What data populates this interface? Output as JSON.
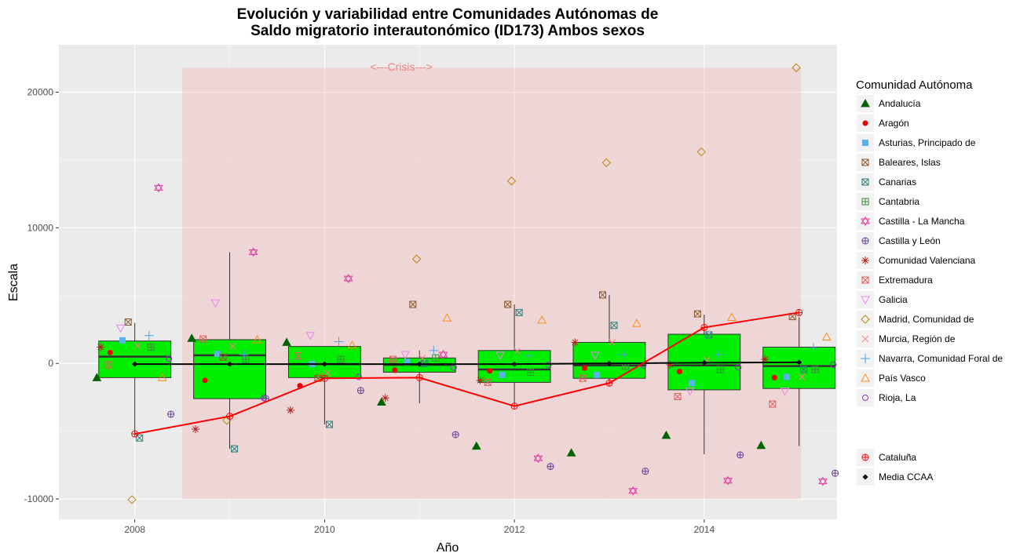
{
  "chart_data": {
    "type": "boxplot",
    "title_line1": "Evolución y variabilidad entre Comunidades Autónomas de",
    "title_line2": "Saldo migratorio interautonómico (ID173) Ambos sexos",
    "xlabel": "Año",
    "ylabel": "Escala",
    "x_ticks": [
      "2008",
      "2010",
      "2012",
      "2014"
    ],
    "x_tick_values": [
      2008,
      2010,
      2012,
      2014
    ],
    "y_ticks": [
      "-10000",
      "0",
      "10000",
      "20000"
    ],
    "y_tick_values": [
      -10000,
      0,
      10000,
      20000
    ],
    "xlim": [
      2007.2,
      2015.4
    ],
    "ylim": [
      -11500,
      23500
    ],
    "grid": true,
    "legend_position": "right",
    "legend_title": "Comunidad Autónoma",
    "crisis": {
      "label": "<---Crisis--->",
      "x_start": 2008.5,
      "x_end": 2015.4,
      "y_start": -10000,
      "y_end": 21800,
      "color": "#f4a6a6"
    },
    "box_color": "#00ee00",
    "mean_color": "#000000",
    "cataluna_color": "#ff0000",
    "years": [
      2008,
      2009,
      2010,
      2011,
      2012,
      2013,
      2014,
      2015
    ],
    "boxes": [
      {
        "year": 2008,
        "q1": -1050,
        "median": 500,
        "q3": 1650,
        "wmin": -5200,
        "wmax": 3000
      },
      {
        "year": 2009,
        "q1": -2600,
        "median": 600,
        "q3": 1750,
        "wmin": -6300,
        "wmax": 8200
      },
      {
        "year": 2010,
        "q1": -1050,
        "median": -50,
        "q3": 1250,
        "wmin": -4500,
        "wmax": 1250
      },
      {
        "year": 2011,
        "q1": -650,
        "median": -100,
        "q3": 400,
        "wmin": -2950,
        "wmax": 950
      },
      {
        "year": 2012,
        "q1": -1400,
        "median": -450,
        "q3": 950,
        "wmin": -3200,
        "wmax": 4350
      },
      {
        "year": 2013,
        "q1": -1100,
        "median": -150,
        "q3": 1550,
        "wmin": -1500,
        "wmax": 5050
      },
      {
        "year": 2014,
        "q1": -1950,
        "median": -150,
        "q3": 2150,
        "wmin": -6700,
        "wmax": 3600
      },
      {
        "year": 2015,
        "q1": -1850,
        "median": -200,
        "q3": 1200,
        "wmin": -6100,
        "wmax": 3400
      }
    ],
    "mean_ccaa": [
      -50,
      -50,
      -50,
      -50,
      -50,
      0,
      50,
      80
    ],
    "cataluna": [
      -5200,
      -3900,
      -1100,
      -1050,
      -3150,
      -1450,
      2650,
      3750
    ],
    "series": [
      {
        "name": "Andalucía",
        "symbol": "triangle",
        "color": "#006400",
        "values": [
          -1050,
          1850,
          1550,
          -2850,
          -6100,
          -6600,
          -5300,
          -6050
        ]
      },
      {
        "name": "Aragón",
        "symbol": "dot",
        "color": "#ee0000",
        "values": [
          800,
          -1250,
          -1650,
          -500,
          -550,
          -350,
          -600,
          -1050
        ]
      },
      {
        "name": "Asturias, Principado de",
        "symbol": "square",
        "color": "#56b4e9",
        "values": [
          1700,
          700,
          -50,
          100,
          -850,
          -850,
          -1450,
          -1000
        ]
      },
      {
        "name": "Baleares, Islas",
        "symbol": "square-x",
        "color": "#8b5a2b",
        "values": [
          3050,
          450,
          -1100,
          4350,
          4350,
          5050,
          3650,
          3450
        ]
      },
      {
        "name": "Canarias",
        "symbol": "square-x",
        "color": "#2f7f7f",
        "values": [
          -5500,
          -6300,
          -4500,
          0,
          3750,
          2800,
          2100,
          -450
        ]
      },
      {
        "name": "Cantabria",
        "symbol": "square-plus",
        "color": "#3c8c3c",
        "values": [
          1200,
          300,
          300,
          400,
          -650,
          -200,
          -450,
          -450
        ]
      },
      {
        "name": "Castilla - La Mancha",
        "symbol": "star",
        "color": "#e040a0",
        "values": [
          12950,
          8200,
          6250,
          650,
          -7000,
          -9400,
          -8650,
          -8700
        ]
      },
      {
        "name": "Castilla y León",
        "symbol": "circle-plus",
        "color": "#6a3d9a",
        "values": [
          -3750,
          -2600,
          -2000,
          -5250,
          -7600,
          -7950,
          -6750,
          -8100
        ]
      },
      {
        "name": "Comunidad Valenciana",
        "symbol": "asterisk",
        "color": "#b22222",
        "values": [
          1200,
          -4850,
          -3450,
          -2550,
          -1250,
          1550,
          -100,
          300
        ]
      },
      {
        "name": "Extremadura",
        "symbol": "square-x",
        "color": "#e06060",
        "values": [
          -100,
          1800,
          550,
          300,
          -1400,
          -1100,
          -2450,
          -3000
        ]
      },
      {
        "name": "Galicia",
        "symbol": "triangle-down",
        "color": "#ee82ee",
        "values": [
          2600,
          4450,
          2050,
          650,
          600,
          600,
          -2050,
          -2050
        ]
      },
      {
        "name": "Madrid, Comunidad de",
        "symbol": "diamond",
        "color": "#b8860b",
        "values": [
          -10050,
          -4200,
          -1000,
          7700,
          13450,
          14800,
          15600,
          21800
        ]
      },
      {
        "name": "Murcia, Región de",
        "symbol": "x",
        "color": "#ff7f7f",
        "values": [
          1300,
          1250,
          -700,
          400,
          900,
          1550,
          250,
          -1000
        ]
      },
      {
        "name": "Navarra, Comunidad Foral de",
        "symbol": "plus",
        "color": "#4fa3e0",
        "values": [
          2050,
          650,
          1600,
          950,
          550,
          650,
          650,
          1150
        ]
      },
      {
        "name": "País Vasco",
        "symbol": "triangle-open",
        "color": "#ff8c1a",
        "values": [
          -1050,
          1750,
          1350,
          3350,
          3200,
          2950,
          3400,
          1950
        ]
      },
      {
        "name": "Rioja, La",
        "symbol": "circle",
        "color": "#9932cc",
        "values": [
          350,
          -2550,
          -1000,
          -300,
          -100,
          -150,
          -300,
          -100
        ]
      }
    ],
    "point_dx": [
      -0.38,
      -0.26,
      -0.15,
      -0.05,
      0.05,
      0.15,
      0.27,
      0.38
    ],
    "extra_legend": [
      {
        "name": "Cataluña",
        "symbol": "circle-plus",
        "color": "#ff0000"
      },
      {
        "name": "Media CCAA",
        "symbol": "diamond-filled",
        "color": "#000000"
      }
    ]
  }
}
